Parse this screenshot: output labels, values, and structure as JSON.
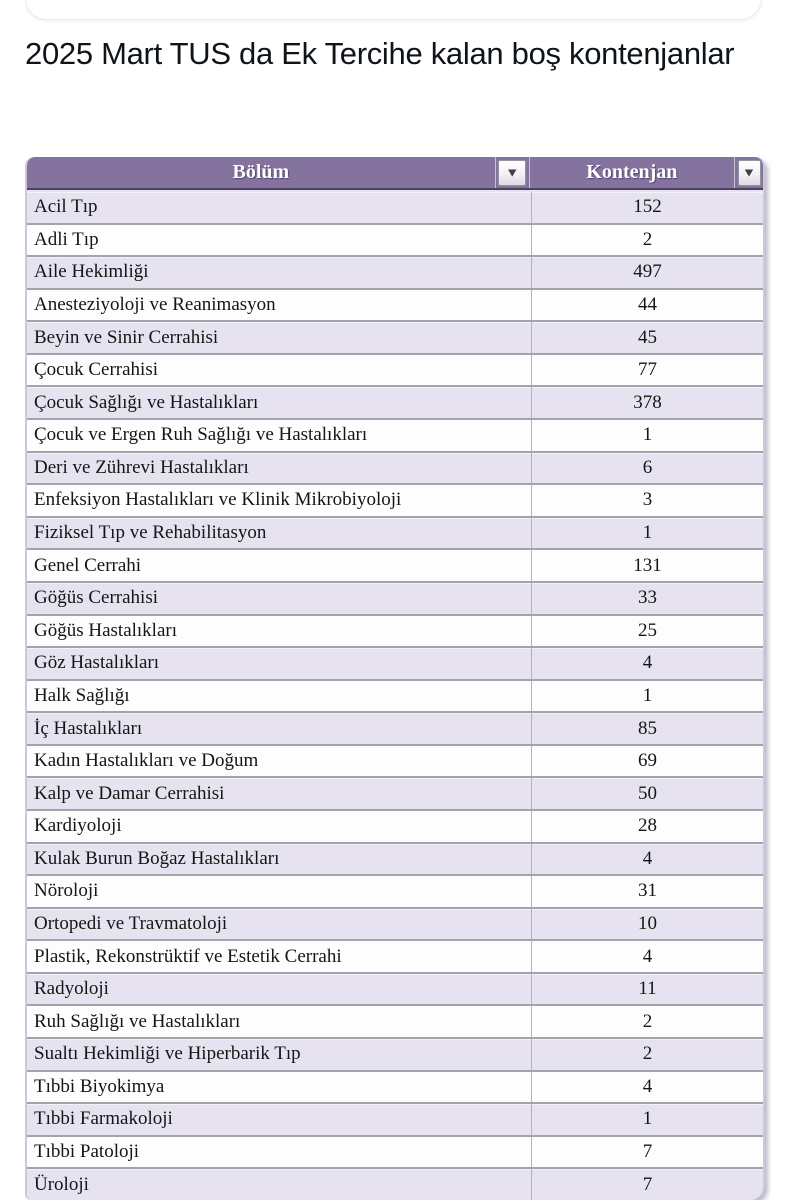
{
  "post": {
    "title": "2025 Mart TUS da Ek Tercihe kalan boş kontenjanlar"
  },
  "icons": {
    "filter_dropdown": "▼"
  },
  "colors": {
    "header_bg": "#84739e",
    "header_text": "#ffffff",
    "row_alt_bg": "#e6e2ef",
    "row_bg": "#fdfdfe",
    "row_separator": "#a3a2ad",
    "table_border": "#cdc7dd",
    "title_text": "#0f1419"
  },
  "table": {
    "headers": {
      "department": "Bölüm",
      "quota": "Kontenjan"
    },
    "rows": [
      {
        "department": "Acil Tıp",
        "quota": "152"
      },
      {
        "department": "Adli Tıp",
        "quota": "2"
      },
      {
        "department": "Aile Hekimliği",
        "quota": "497"
      },
      {
        "department": "Anesteziyoloji ve Reanimasyon",
        "quota": "44"
      },
      {
        "department": "Beyin ve Sinir Cerrahisi",
        "quota": "45"
      },
      {
        "department": "Çocuk Cerrahisi",
        "quota": "77"
      },
      {
        "department": "Çocuk Sağlığı ve Hastalıkları",
        "quota": "378"
      },
      {
        "department": "Çocuk ve Ergen Ruh Sağlığı ve Hastalıkları",
        "quota": "1"
      },
      {
        "department": "Deri ve Zührevi Hastalıkları",
        "quota": "6"
      },
      {
        "department": "Enfeksiyon Hastalıkları ve Klinik Mikrobiyoloji",
        "quota": "3"
      },
      {
        "department": "Fiziksel Tıp ve Rehabilitasyon",
        "quota": "1"
      },
      {
        "department": "Genel Cerrahi",
        "quota": "131"
      },
      {
        "department": "Göğüs Cerrahisi",
        "quota": "33"
      },
      {
        "department": "Göğüs Hastalıkları",
        "quota": "25"
      },
      {
        "department": "Göz Hastalıkları",
        "quota": "4"
      },
      {
        "department": "Halk Sağlığı",
        "quota": "1"
      },
      {
        "department": "İç Hastalıkları",
        "quota": "85"
      },
      {
        "department": "Kadın Hastalıkları ve Doğum",
        "quota": "69"
      },
      {
        "department": "Kalp ve Damar Cerrahisi",
        "quota": "50"
      },
      {
        "department": "Kardiyoloji",
        "quota": "28"
      },
      {
        "department": "Kulak Burun Boğaz Hastalıkları",
        "quota": "4"
      },
      {
        "department": "Nöroloji",
        "quota": "31"
      },
      {
        "department": "Ortopedi ve Travmatoloji",
        "quota": "10"
      },
      {
        "department": "Plastik, Rekonstrüktif ve Estetik Cerrahi",
        "quota": "4"
      },
      {
        "department": "Radyoloji",
        "quota": "11"
      },
      {
        "department": "Ruh Sağlığı ve Hastalıkları",
        "quota": "2"
      },
      {
        "department": "Sualtı Hekimliği ve Hiperbarik Tıp",
        "quota": "2"
      },
      {
        "department": "Tıbbi Biyokimya",
        "quota": "4"
      },
      {
        "department": "Tıbbi Farmakoloji",
        "quota": "1"
      },
      {
        "department": "Tıbbi Patoloji",
        "quota": "7"
      },
      {
        "department": "Üroloji",
        "quota": "7"
      }
    ]
  }
}
